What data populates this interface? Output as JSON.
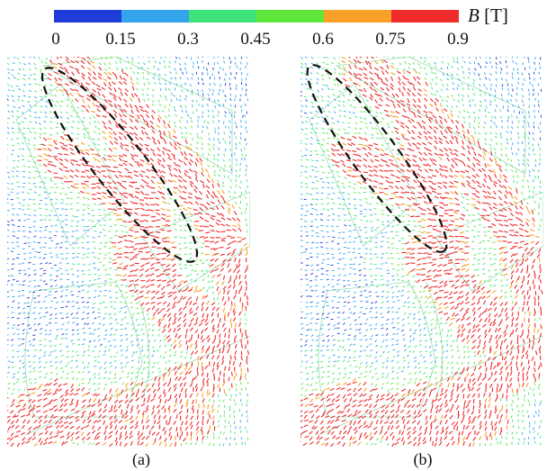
{
  "legend": {
    "unit_symbol": "B",
    "unit_text": "[T]",
    "ticks": [
      "0",
      "0.15",
      "0.3",
      "0.45",
      "0.6",
      "0.75",
      "0.9"
    ],
    "colors": [
      "#1f3bd8",
      "#34a4ec",
      "#3de27a",
      "#5fe63a",
      "#f8a126",
      "#ef2b2b"
    ]
  },
  "panels": [
    {
      "label": "(a)",
      "highlight": "dashed-ellipse",
      "ellipse": {
        "cx": 125,
        "cy": 120,
        "rx": 135,
        "ry": 28,
        "rot": 52
      }
    },
    {
      "label": "(b)",
      "highlight": "dashed-ellipse",
      "ellipse": {
        "cx": 85,
        "cy": 113,
        "rx": 127,
        "ry": 25,
        "rot": 54
      }
    }
  ]
}
